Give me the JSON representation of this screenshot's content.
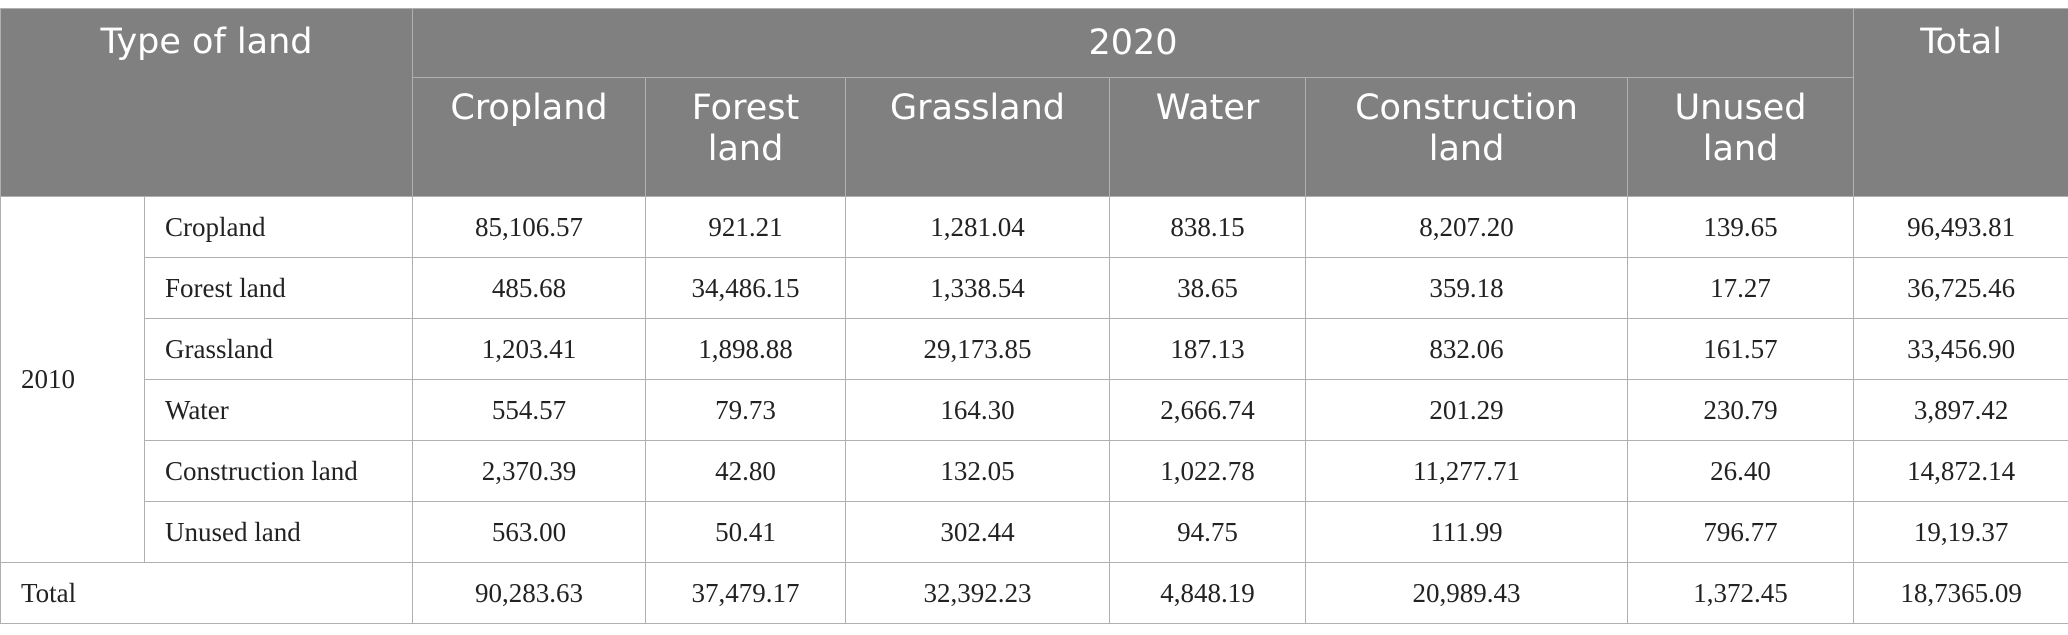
{
  "table": {
    "corner_label": "Type of land",
    "year_2020": "2020",
    "total_header": "Total",
    "column_headers": [
      [
        "Cropland"
      ],
      [
        "Forest",
        "land"
      ],
      [
        "Grassland"
      ],
      [
        "Water"
      ],
      [
        "Construction",
        "land"
      ],
      [
        "Unused",
        "land"
      ]
    ],
    "year_2010": "2010",
    "rows": [
      {
        "label": "Cropland",
        "values": [
          "85,106.57",
          "921.21",
          "1,281.04",
          "838.15",
          "8,207.20",
          "139.65"
        ],
        "total": "96,493.81"
      },
      {
        "label": "Forest land",
        "values": [
          "485.68",
          "34,486.15",
          "1,338.54",
          "38.65",
          "359.18",
          "17.27"
        ],
        "total": "36,725.46"
      },
      {
        "label": "Grassland",
        "values": [
          "1,203.41",
          "1,898.88",
          "29,173.85",
          "187.13",
          "832.06",
          "161.57"
        ],
        "total": "33,456.90"
      },
      {
        "label": "Water",
        "values": [
          "554.57",
          "79.73",
          "164.30",
          "2,666.74",
          "201.29",
          "230.79"
        ],
        "total": "3,897.42"
      },
      {
        "label": "Construction land",
        "values": [
          "2,370.39",
          "42.80",
          "132.05",
          "1,022.78",
          "11,277.71",
          "26.40"
        ],
        "total": "14,872.14"
      },
      {
        "label": "Unused land",
        "values": [
          "563.00",
          "50.41",
          "302.44",
          "94.75",
          "111.99",
          "796.77"
        ],
        "total": "19,19.37"
      }
    ],
    "total_row": {
      "label": "Total",
      "values": [
        "90,283.63",
        "37,479.17",
        "32,392.23",
        "4,848.19",
        "20,989.43",
        "1,372.45"
      ],
      "total": "18,7365.09"
    }
  }
}
